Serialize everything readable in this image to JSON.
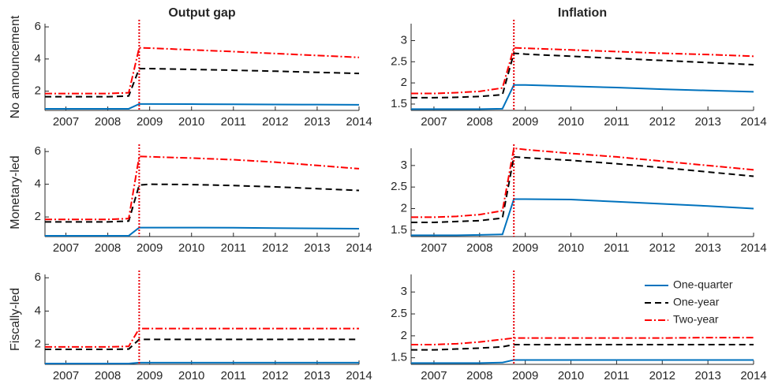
{
  "chart_data": [
    {
      "type": "line",
      "title": "Output gap",
      "ylabel": "No announcement",
      "x": [
        2006.5,
        2007,
        2007.5,
        2008,
        2008.5,
        2008.75,
        2009,
        2010,
        2011,
        2012,
        2013,
        2014
      ],
      "xlim": [
        2006.5,
        2014
      ],
      "xticks": [
        2007,
        2008,
        2009,
        2010,
        2011,
        2012,
        2013,
        2014
      ],
      "ylim": [
        0.8,
        6.2
      ],
      "yticks": [
        2,
        4,
        6
      ],
      "vline": 2008.75,
      "vline_color": "#e8000b",
      "series": [
        {
          "name": "One-quarter",
          "color": "#0072bd",
          "line_style": "solid",
          "values": [
            0.9,
            0.9,
            0.9,
            0.9,
            0.9,
            1.2,
            1.2,
            1.19,
            1.18,
            1.17,
            1.16,
            1.15
          ]
        },
        {
          "name": "One-year",
          "color": "#000000",
          "line_style": "dashed",
          "values": [
            1.65,
            1.65,
            1.65,
            1.65,
            1.7,
            3.4,
            3.4,
            3.35,
            3.3,
            3.24,
            3.17,
            3.1
          ]
        },
        {
          "name": "Two-year",
          "color": "#ff0000",
          "line_style": "dashdot",
          "values": [
            1.85,
            1.85,
            1.85,
            1.85,
            1.9,
            4.7,
            4.68,
            4.57,
            4.46,
            4.34,
            4.22,
            4.1
          ]
        }
      ]
    },
    {
      "type": "line",
      "title": "Inflation",
      "x": [
        2006.5,
        2007,
        2007.5,
        2008,
        2008.5,
        2008.75,
        2009,
        2010,
        2011,
        2012,
        2013,
        2014
      ],
      "xlim": [
        2006.5,
        2014
      ],
      "xticks": [
        2007,
        2008,
        2009,
        2010,
        2011,
        2012,
        2013,
        2014
      ],
      "ylim": [
        1.35,
        3.4
      ],
      "yticks": [
        1.5,
        2,
        2.5,
        3
      ],
      "vline": 2008.75,
      "vline_color": "#e8000b",
      "series": [
        {
          "name": "One-quarter",
          "color": "#0072bd",
          "line_style": "solid",
          "values": [
            1.38,
            1.38,
            1.38,
            1.38,
            1.39,
            1.95,
            1.95,
            1.92,
            1.89,
            1.85,
            1.82,
            1.79
          ]
        },
        {
          "name": "One-year",
          "color": "#000000",
          "line_style": "dashed",
          "values": [
            1.65,
            1.65,
            1.66,
            1.68,
            1.72,
            2.7,
            2.68,
            2.63,
            2.58,
            2.53,
            2.48,
            2.43
          ]
        },
        {
          "name": "Two-year",
          "color": "#ff0000",
          "line_style": "dashdot",
          "values": [
            1.75,
            1.75,
            1.77,
            1.8,
            1.88,
            2.83,
            2.82,
            2.78,
            2.74,
            2.7,
            2.67,
            2.63
          ]
        }
      ]
    },
    {
      "type": "line",
      "ylabel": "Monetary-led",
      "x": [
        2006.5,
        2007,
        2007.5,
        2008,
        2008.5,
        2008.75,
        2009,
        2010,
        2011,
        2012,
        2013,
        2014
      ],
      "xlim": [
        2006.5,
        2014
      ],
      "xticks": [
        2007,
        2008,
        2009,
        2010,
        2011,
        2012,
        2013,
        2014
      ],
      "ylim": [
        0.8,
        6.2
      ],
      "yticks": [
        2,
        4,
        6
      ],
      "vline": 2008.75,
      "vline_color": "#e8000b",
      "series": [
        {
          "name": "One-quarter",
          "color": "#0072bd",
          "line_style": "solid",
          "values": [
            0.85,
            0.85,
            0.85,
            0.85,
            0.85,
            1.35,
            1.35,
            1.35,
            1.34,
            1.32,
            1.3,
            1.28
          ]
        },
        {
          "name": "One-year",
          "color": "#000000",
          "line_style": "dashed",
          "values": [
            1.7,
            1.7,
            1.7,
            1.7,
            1.75,
            3.95,
            4.0,
            3.98,
            3.92,
            3.84,
            3.73,
            3.62
          ]
        },
        {
          "name": "Two-year",
          "color": "#ff0000",
          "line_style": "dashdot",
          "values": [
            1.85,
            1.85,
            1.85,
            1.85,
            1.9,
            5.7,
            5.68,
            5.6,
            5.5,
            5.35,
            5.15,
            4.95
          ]
        }
      ]
    },
    {
      "type": "line",
      "x": [
        2006.5,
        2007,
        2007.5,
        2008,
        2008.5,
        2008.75,
        2009,
        2010,
        2011,
        2012,
        2013,
        2014
      ],
      "xlim": [
        2006.5,
        2014
      ],
      "xticks": [
        2007,
        2008,
        2009,
        2010,
        2011,
        2012,
        2013,
        2014
      ],
      "ylim": [
        1.35,
        3.4
      ],
      "yticks": [
        1.5,
        2,
        2.5,
        3
      ],
      "vline": 2008.75,
      "vline_color": "#e8000b",
      "series": [
        {
          "name": "One-quarter",
          "color": "#0072bd",
          "line_style": "solid",
          "values": [
            1.38,
            1.38,
            1.38,
            1.39,
            1.4,
            2.22,
            2.22,
            2.21,
            2.16,
            2.11,
            2.06,
            2.0
          ]
        },
        {
          "name": "One-year",
          "color": "#000000",
          "line_style": "dashed",
          "values": [
            1.68,
            1.68,
            1.7,
            1.72,
            1.78,
            3.2,
            3.18,
            3.12,
            3.04,
            2.95,
            2.85,
            2.75
          ]
        },
        {
          "name": "Two-year",
          "color": "#ff0000",
          "line_style": "dashdot",
          "values": [
            1.8,
            1.8,
            1.82,
            1.86,
            1.95,
            3.4,
            3.37,
            3.28,
            3.2,
            3.1,
            3.0,
            2.9
          ]
        }
      ]
    },
    {
      "type": "line",
      "ylabel": "Fiscally-led",
      "x": [
        2006.5,
        2007,
        2007.5,
        2008,
        2008.5,
        2008.75,
        2009,
        2010,
        2011,
        2012,
        2013,
        2014
      ],
      "xlim": [
        2006.5,
        2014
      ],
      "xticks": [
        2007,
        2008,
        2009,
        2010,
        2011,
        2012,
        2013,
        2014
      ],
      "ylim": [
        0.8,
        6.2
      ],
      "yticks": [
        2,
        4,
        6
      ],
      "vline": 2008.75,
      "vline_color": "#e8000b",
      "series": [
        {
          "name": "One-quarter",
          "color": "#0072bd",
          "line_style": "solid",
          "values": [
            0.85,
            0.85,
            0.85,
            0.85,
            0.85,
            0.9,
            0.9,
            0.9,
            0.9,
            0.9,
            0.9,
            0.9
          ]
        },
        {
          "name": "One-year",
          "color": "#000000",
          "line_style": "dashed",
          "values": [
            1.7,
            1.7,
            1.7,
            1.7,
            1.72,
            2.3,
            2.3,
            2.3,
            2.3,
            2.3,
            2.3,
            2.3
          ]
        },
        {
          "name": "Two-year",
          "color": "#ff0000",
          "line_style": "dashdot",
          "values": [
            1.85,
            1.85,
            1.85,
            1.85,
            1.88,
            2.95,
            2.95,
            2.95,
            2.95,
            2.95,
            2.95,
            2.95
          ]
        }
      ]
    },
    {
      "type": "line",
      "legend": "northeast",
      "x": [
        2006.5,
        2007,
        2007.5,
        2008,
        2008.5,
        2008.75,
        2009,
        2010,
        2011,
        2012,
        2013,
        2014
      ],
      "xlim": [
        2006.5,
        2014
      ],
      "xticks": [
        2007,
        2008,
        2009,
        2010,
        2011,
        2012,
        2013,
        2014
      ],
      "ylim": [
        1.35,
        3.4
      ],
      "yticks": [
        1.5,
        2,
        2.5,
        3
      ],
      "vline": 2008.75,
      "vline_color": "#e8000b",
      "series": [
        {
          "name": "One-quarter",
          "color": "#0072bd",
          "line_style": "solid",
          "values": [
            1.38,
            1.38,
            1.38,
            1.38,
            1.39,
            1.45,
            1.45,
            1.45,
            1.45,
            1.45,
            1.45,
            1.45
          ]
        },
        {
          "name": "One-year",
          "color": "#000000",
          "line_style": "dashed",
          "values": [
            1.68,
            1.68,
            1.7,
            1.72,
            1.75,
            1.8,
            1.8,
            1.8,
            1.8,
            1.8,
            1.8,
            1.8
          ]
        },
        {
          "name": "Two-year",
          "color": "#ff0000",
          "line_style": "dashdot",
          "values": [
            1.8,
            1.8,
            1.82,
            1.86,
            1.92,
            1.95,
            1.95,
            1.95,
            1.95,
            1.95,
            1.96,
            1.96
          ]
        }
      ]
    }
  ]
}
